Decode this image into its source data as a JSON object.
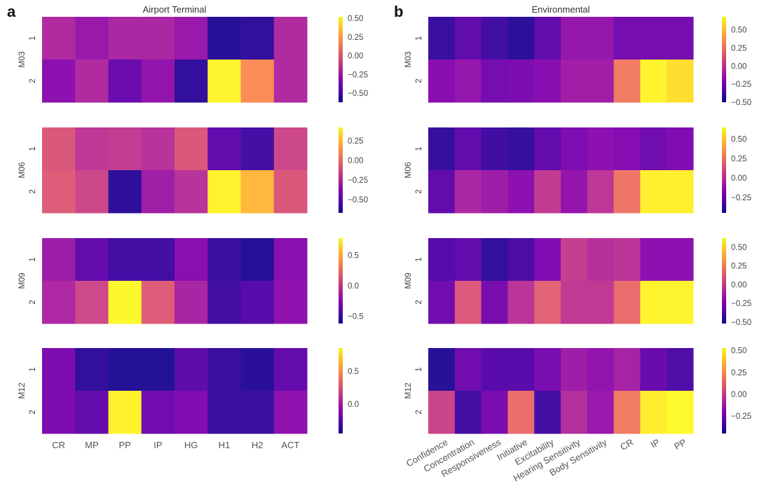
{
  "figure": {
    "panels": [
      {
        "letter": "a",
        "title": "Airport Terminal"
      },
      {
        "letter": "b",
        "title": "Environmental"
      }
    ]
  },
  "chart_data": [
    {
      "type": "heatmap",
      "panel": "a",
      "title": "Airport Terminal",
      "colormap": "plasma",
      "row_labels": [
        "1",
        "2"
      ],
      "x_tick_labels": [
        "CR",
        "MP",
        "PP",
        "IP",
        "HG",
        "H1",
        "H2",
        "ACT"
      ],
      "groups": [
        {
          "name": "M03",
          "vmin": -0.62,
          "vmax": 0.52,
          "cbar_ticks": [
            "0.50",
            "0.25",
            "0.00",
            "−0.25",
            "−0.50"
          ],
          "cbar_tick_values": [
            0.5,
            0.25,
            0.0,
            -0.25,
            -0.5
          ],
          "values": [
            [
              -0.2,
              -0.28,
              -0.22,
              -0.22,
              -0.28,
              -0.58,
              -0.56,
              -0.2
            ],
            [
              -0.32,
              -0.2,
              -0.42,
              -0.3,
              -0.56,
              0.48,
              0.18,
              -0.2
            ]
          ]
        },
        {
          "name": "M06",
          "vmin": -0.67,
          "vmax": 0.42,
          "cbar_ticks": [
            "0.25",
            "0.00",
            "−0.25",
            "−0.50"
          ],
          "cbar_tick_values": [
            0.25,
            0.0,
            -0.25,
            -0.5
          ],
          "values": [
            [
              -0.1,
              -0.22,
              -0.2,
              -0.24,
              -0.1,
              -0.5,
              -0.57,
              -0.16
            ],
            [
              -0.08,
              -0.16,
              -0.62,
              -0.32,
              -0.24,
              0.38,
              0.22,
              -0.1
            ]
          ]
        },
        {
          "name": "M09",
          "vmin": -0.62,
          "vmax": 0.78,
          "cbar_ticks": [
            "0.5",
            "0.0",
            "−0.5"
          ],
          "cbar_tick_values": [
            0.5,
            0.0,
            -0.5
          ],
          "values": [
            [
              -0.18,
              -0.4,
              -0.5,
              -0.5,
              -0.26,
              -0.52,
              -0.58,
              -0.26
            ],
            [
              -0.12,
              0.04,
              0.74,
              0.14,
              -0.14,
              -0.5,
              -0.44,
              -0.24
            ]
          ]
        },
        {
          "name": "M12",
          "vmin": -0.45,
          "vmax": 0.85,
          "cbar_ticks": [
            "0.5",
            "0.0"
          ],
          "cbar_tick_values": [
            0.5,
            0.0
          ],
          "values": [
            [
              -0.16,
              -0.38,
              -0.42,
              -0.42,
              -0.26,
              -0.36,
              -0.4,
              -0.24
            ],
            [
              -0.16,
              -0.24,
              0.8,
              -0.2,
              -0.14,
              -0.36,
              -0.36,
              -0.1
            ]
          ]
        }
      ]
    },
    {
      "type": "heatmap",
      "panel": "b",
      "title": "Environmental",
      "colormap": "plasma",
      "row_labels": [
        "1",
        "2"
      ],
      "x_tick_labels": [
        "Confidence",
        "Concentration",
        "Responsiveness",
        "Initiative",
        "Excitability",
        "Hearing Sensitivity",
        "Body Sensitivity",
        "CR",
        "IP",
        "PP"
      ],
      "groups": [
        {
          "name": "M03",
          "vmin": -0.5,
          "vmax": 0.68,
          "cbar_ticks": [
            "0.50",
            "0.25",
            "0.00",
            "−0.25",
            "−0.50"
          ],
          "cbar_tick_values": [
            0.5,
            0.25,
            0.0,
            -0.25,
            -0.5
          ],
          "values": [
            [
              -0.42,
              -0.32,
              -0.4,
              -0.45,
              -0.32,
              -0.16,
              -0.16,
              -0.26,
              -0.26,
              -0.26
            ],
            [
              -0.2,
              -0.16,
              -0.26,
              -0.24,
              -0.2,
              -0.12,
              -0.12,
              0.26,
              0.64,
              0.58
            ]
          ]
        },
        {
          "name": "M06",
          "vmin": -0.45,
          "vmax": 0.65,
          "cbar_ticks": [
            "0.50",
            "0.25",
            "0.00",
            "−0.25"
          ],
          "cbar_tick_values": [
            0.5,
            0.25,
            0.0,
            -0.25
          ],
          "values": [
            [
              -0.38,
              -0.28,
              -0.36,
              -0.38,
              -0.28,
              -0.2,
              -0.16,
              -0.18,
              -0.24,
              -0.2
            ],
            [
              -0.28,
              -0.06,
              -0.1,
              -0.16,
              0.02,
              -0.14,
              0.0,
              0.24,
              0.6,
              0.6
            ]
          ]
        },
        {
          "name": "M09",
          "vmin": -0.52,
          "vmax": 0.62,
          "cbar_ticks": [
            "0.50",
            "0.25",
            "0.00",
            "−0.25",
            "−0.50"
          ],
          "cbar_tick_values": [
            0.5,
            0.25,
            0.0,
            -0.25,
            -0.5
          ],
          "values": [
            [
              -0.38,
              -0.34,
              -0.46,
              -0.4,
              -0.26,
              -0.02,
              -0.08,
              -0.06,
              -0.22,
              -0.22
            ],
            [
              -0.3,
              0.08,
              -0.28,
              -0.06,
              0.12,
              -0.04,
              -0.04,
              0.16,
              0.58,
              0.58
            ]
          ]
        },
        {
          "name": "M12",
          "vmin": -0.45,
          "vmax": 0.53,
          "cbar_ticks": [
            "0.50",
            "0.25",
            "0.00",
            "−0.25"
          ],
          "cbar_tick_values": [
            0.5,
            0.25,
            0.0,
            -0.25
          ],
          "values": [
            [
              -0.42,
              -0.26,
              -0.32,
              -0.32,
              -0.24,
              -0.14,
              -0.18,
              -0.12,
              -0.28,
              -0.34
            ],
            [
              0.0,
              -0.36,
              -0.24,
              0.14,
              -0.36,
              -0.08,
              -0.16,
              0.18,
              0.48,
              0.51
            ]
          ]
        }
      ]
    }
  ]
}
